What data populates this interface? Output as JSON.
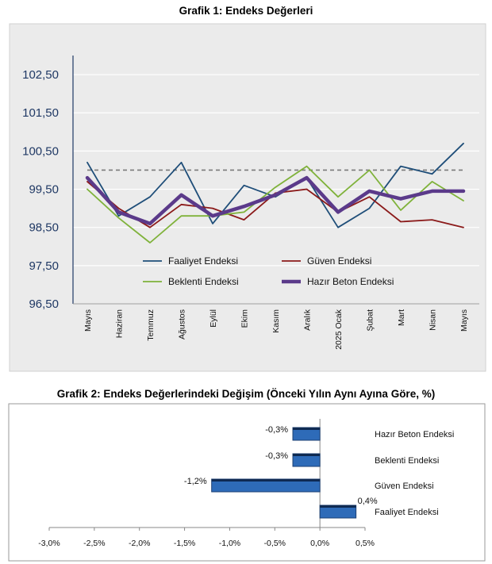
{
  "chart_data": [
    {
      "type": "line",
      "title": "Grafik 1: Endeks Değerleri",
      "categories": [
        "Mayıs",
        "Haziran",
        "Temmuz",
        "Ağustos",
        "Eylül",
        "Ekim",
        "Kasım",
        "Aralık",
        "2025 Ocak",
        "Şubat",
        "Mart",
        "Nisan",
        "Mayıs"
      ],
      "ylim": [
        96.5,
        103.0
      ],
      "yticks": [
        "96,50",
        "97,50",
        "98,50",
        "99,50",
        "100,50",
        "101,50",
        "102,50"
      ],
      "reference_line": 100,
      "grid": true,
      "legend_position": "bottom",
      "series": [
        {
          "name": "Faaliyet Endeksi",
          "color": "#1f4e79",
          "width": 1.8,
          "values": [
            100.2,
            98.8,
            99.3,
            100.2,
            98.6,
            99.6,
            99.3,
            99.8,
            98.5,
            99.0,
            100.1,
            99.9,
            100.7
          ]
        },
        {
          "name": "Güven Endeksi",
          "color": "#8b1a1a",
          "width": 1.8,
          "values": [
            99.7,
            99.0,
            98.5,
            99.1,
            99.0,
            98.7,
            99.4,
            99.5,
            98.9,
            99.3,
            98.65,
            98.7,
            98.5
          ]
        },
        {
          "name": "Beklenti Endeksi",
          "color": "#7fb23a",
          "width": 1.8,
          "values": [
            99.5,
            98.75,
            98.1,
            98.8,
            98.8,
            98.9,
            99.55,
            100.1,
            99.3,
            100.0,
            98.95,
            99.7,
            99.2
          ]
        },
        {
          "name": "Hazır Beton Endeksi",
          "color": "#5b3a8a",
          "width": 4.5,
          "values": [
            99.8,
            98.9,
            98.6,
            99.35,
            98.8,
            99.05,
            99.35,
            99.8,
            98.9,
            99.45,
            99.25,
            99.45,
            99.45
          ]
        }
      ]
    },
    {
      "type": "bar",
      "orientation": "horizontal",
      "title": "Grafik 2: Endeks Değerlerindeki Değişim (Önceki Yılın Aynı Ayına Göre, %)",
      "xlim": [
        -3.0,
        0.5
      ],
      "xticks": [
        "-3,0%",
        "-2,5%",
        "-2,0%",
        "-1,5%",
        "-1,0%",
        "-0,5%",
        "0,0%",
        "0,5%"
      ],
      "bar_color": "#2e6bb8",
      "categories": [
        "Hazır Beton Endeksi",
        "Beklenti Endeksi",
        "Güven Endeksi",
        "Faaliyet Endeksi"
      ],
      "values": [
        -0.3,
        -0.3,
        -1.2,
        0.4
      ],
      "value_labels": [
        "-0,3%",
        "-0,3%",
        "-1,2%",
        "0,4%"
      ]
    }
  ]
}
